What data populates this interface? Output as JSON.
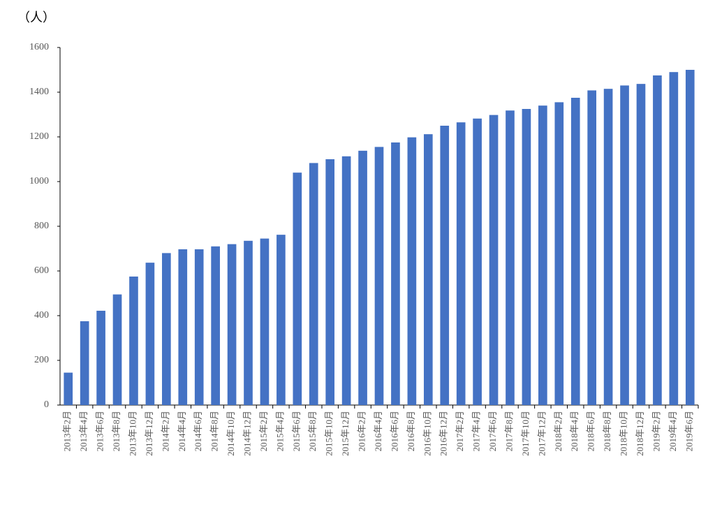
{
  "chart_data": {
    "type": "bar",
    "y_label": "（人）",
    "categories": [
      "2013年2月",
      "2013年4月",
      "2013年6月",
      "2013年8月",
      "2013年10月",
      "2013年12月",
      "2014年2月",
      "2014年4月",
      "2014年6月",
      "2014年8月",
      "2014年10月",
      "2014年12月",
      "2015年2月",
      "2015年4月",
      "2015年6月",
      "2015年8月",
      "2015年10月",
      "2015年12月",
      "2016年2月",
      "2016年4月",
      "2016年6月",
      "2016年8月",
      "2016年10月",
      "2016年12月",
      "2017年2月",
      "2017年4月",
      "2017年6月",
      "2017年8月",
      "2017年10月",
      "2017年12月",
      "2018年2月",
      "2018年4月",
      "2018年6月",
      "2018年8月",
      "2018年10月",
      "2018年12月",
      "2019年2月",
      "2019年4月",
      "2019年6月"
    ],
    "values": [
      145,
      375,
      422,
      495,
      575,
      637,
      680,
      697,
      697,
      710,
      720,
      735,
      745,
      762,
      1040,
      1083,
      1100,
      1113,
      1138,
      1155,
      1175,
      1198,
      1212,
      1250,
      1265,
      1282,
      1298,
      1318,
      1325,
      1340,
      1355,
      1375,
      1408,
      1415,
      1430,
      1437,
      1475,
      1490,
      1500
    ],
    "color": "#4472c4",
    "ylim": [
      0,
      1600
    ],
    "yticks": [
      0,
      200,
      400,
      600,
      800,
      1000,
      1200,
      1400,
      1600
    ],
    "grid": false
  }
}
